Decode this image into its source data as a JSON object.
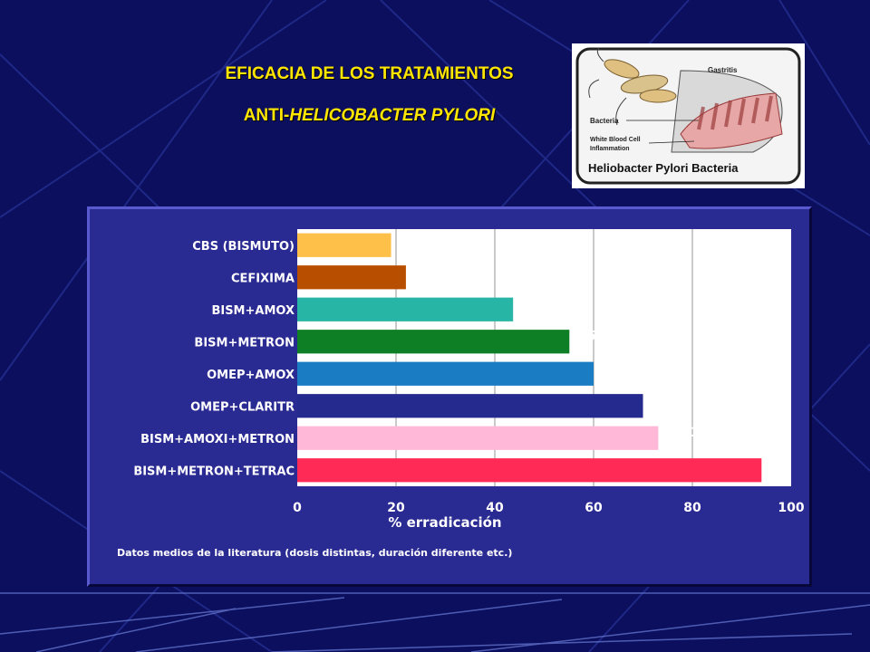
{
  "slide": {
    "title_line1": "EFICACIA DE LOS TRATAMIENTOS",
    "title_line2_prefix": "ANTI-",
    "title_line2_italic": "HELICOBACTER PYLORI",
    "colors": {
      "background": "#0c0f5e",
      "title": "#ffe600"
    }
  },
  "image": {
    "label_gastritis": "Gastritis",
    "label_bacteria": "Bacteria",
    "label_wbc_line1": "White Blood Cell",
    "label_wbc_line2": "Inflammation",
    "caption": "Heliobacter Pylori Bacteria"
  },
  "chart_data": {
    "type": "bar",
    "orientation": "horizontal",
    "categories": [
      "CBS (BISMUTO)",
      "CEFIXIMA",
      "BISM+AMOX",
      "BISM+METRON",
      "OMEP+AMOX",
      "OMEP+CLARITR",
      "BISM+AMOXI+METRON",
      "BISM+METRON+TETRAC"
    ],
    "values": [
      19,
      22,
      43.7,
      55.1,
      60,
      70,
      73.1,
      94
    ],
    "value_labels": [
      "19",
      "22",
      "43,7",
      "55,1",
      "60",
      "70",
      "73,1",
      "94"
    ],
    "colors": [
      "#ffc04a",
      "#b84f00",
      "#27b5a6",
      "#0e7f25",
      "#1a7dc4",
      "#252a8f",
      "#ffb8d8",
      "#ff2a55"
    ],
    "x_ticks": [
      0,
      20,
      40,
      60,
      80,
      100
    ],
    "xlim": [
      0,
      100
    ],
    "xlabel": "% erradicación",
    "note": "Datos medios de la literatura (dosis distintas, duración diferente etc.)",
    "grid": true
  }
}
